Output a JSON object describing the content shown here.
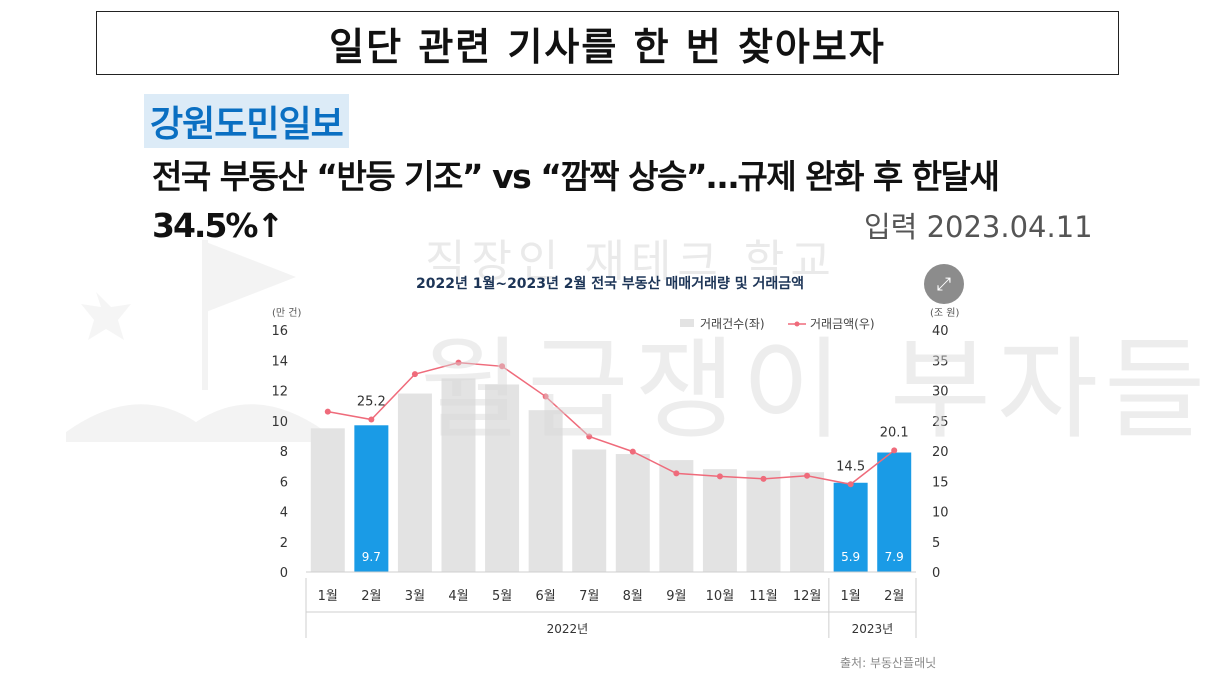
{
  "slide": {
    "title": "일단 관련 기사를 한 번 찾아보자"
  },
  "article": {
    "source": "강원도민일보",
    "headline_line1": "전국 부동산 “반등 기조” vs “깜짝 상승”…규제 완화 후 한달새",
    "headline_line2": "34.5%↑",
    "date": "입력 2023.04.11"
  },
  "watermark": {
    "line1": "직장인 재테크 학교",
    "line2": "월급쟁이 부자들"
  },
  "chart_data": {
    "type": "bar",
    "title": "2022년 1월~2023년 2월 전국 부동산 매매거래량 및 거래금액",
    "categories": [
      "1월",
      "2월",
      "3월",
      "4월",
      "5월",
      "6월",
      "7월",
      "8월",
      "9월",
      "10월",
      "11월",
      "12월",
      "1월",
      "2월"
    ],
    "year_groups": [
      {
        "label": "2022년",
        "start": 0,
        "end": 11
      },
      {
        "label": "2023년",
        "start": 12,
        "end": 13
      }
    ],
    "y_left": {
      "unit": "(만 건)",
      "min": 0,
      "max": 16,
      "ticks": [
        0,
        2,
        4,
        6,
        8,
        10,
        12,
        14,
        16
      ]
    },
    "y_right": {
      "unit": "(조 원)",
      "min": 0,
      "max": 40,
      "ticks": [
        0,
        5,
        10,
        15,
        20,
        25,
        30,
        35,
        40
      ]
    },
    "series": [
      {
        "name": "거래건수(좌)",
        "type": "bar",
        "axis": "left",
        "values": [
          9.5,
          9.7,
          11.8,
          12.8,
          12.4,
          10.7,
          8.1,
          7.8,
          7.4,
          6.8,
          6.7,
          6.6,
          5.9,
          7.9
        ],
        "highlight_indices": [
          1,
          12,
          13
        ],
        "labels": {
          "1": "9.7",
          "12": "5.9",
          "13": "7.9"
        }
      },
      {
        "name": "거래금액(우)",
        "type": "line",
        "axis": "right",
        "values": [
          26.5,
          25.2,
          32.7,
          34.6,
          34.0,
          29.0,
          22.4,
          19.9,
          16.3,
          15.8,
          15.4,
          15.9,
          14.5,
          20.1
        ],
        "labels": {
          "1": "25.2",
          "12": "14.5",
          "13": "20.1"
        }
      }
    ],
    "colors": {
      "bar": "#e3e3e3",
      "bar_highlight": "#1a9be6",
      "line": "#ef6b7b"
    },
    "legend_position": "top-right",
    "source_note": "출처: 부동산플래닛"
  }
}
